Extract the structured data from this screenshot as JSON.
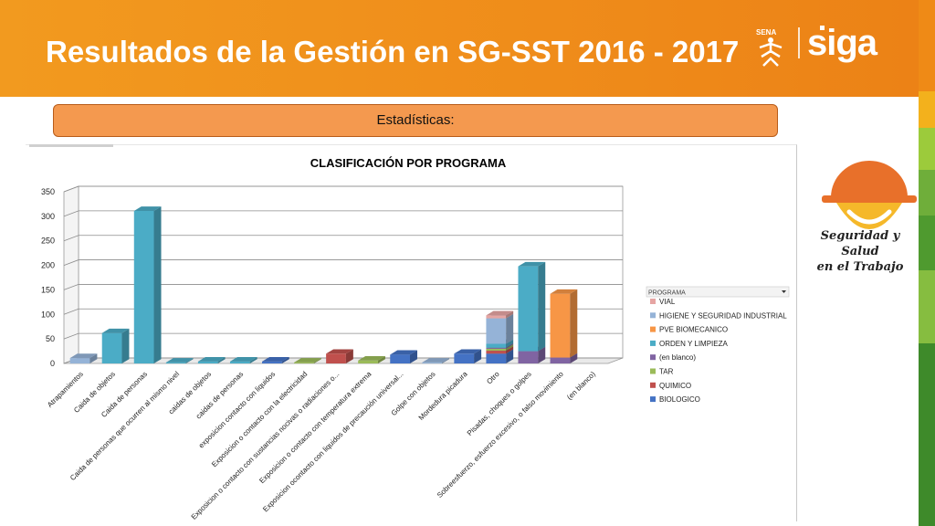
{
  "header": {
    "title": "Resultados de la Gestión en SG-SST 2016 - 2017",
    "sena_logo_text": "SENA",
    "siga_logo_text": "siga",
    "colors": {
      "bar": "#ef8c1a",
      "text": "#ffffff"
    }
  },
  "banner": {
    "label": "Estadísticas:"
  },
  "side_logo": {
    "line1": "Seguridad y Salud",
    "line2": "en el Trabajo"
  },
  "chart_data": {
    "type": "bar",
    "stacked": true,
    "title": "CLASIFICACIÓN POR PROGRAMA",
    "ylim": [
      0,
      350
    ],
    "yticks": [
      0,
      50,
      100,
      150,
      200,
      250,
      300,
      350
    ],
    "grid": true,
    "legend_position": "right",
    "legend_header": "PROGRAMA",
    "categories": [
      "Atrapamientos",
      "Caida de objetos",
      "Caida de personas",
      "Caida de personas  que ocurren al mismo nivel",
      "caidas de objetos",
      "caidas de personas",
      "exposicion contacto con liquidos",
      "Exposicion o contacto con la electricidad",
      "Exposicion o contacto con sustancias nocivas o radiaciones o...",
      "Exposicion o contacto con temperatura extrema",
      "Exposicion ocontacto con liquidos de precaución universal...",
      "Golpe con objetos",
      "Mordedura picadura",
      "Otro",
      "Pisadas, choques o golpes",
      "Sobreesfuerzo, esfuerzo excesivo, o falso movimiento",
      "(en blanco)"
    ],
    "series": [
      {
        "name": "BIOLOGICO",
        "color": "#4472c4",
        "values": [
          0,
          0,
          0,
          0,
          0,
          0,
          4,
          0,
          0,
          0,
          18,
          0,
          20,
          20,
          0,
          0,
          0
        ]
      },
      {
        "name": "QUIMICO",
        "color": "#c0504d",
        "values": [
          0,
          0,
          0,
          0,
          0,
          0,
          0,
          0,
          20,
          0,
          0,
          0,
          0,
          6,
          0,
          0,
          0
        ]
      },
      {
        "name": "TAR",
        "color": "#9bbb59",
        "values": [
          0,
          0,
          0,
          0,
          0,
          0,
          0,
          2,
          0,
          6,
          0,
          0,
          0,
          4,
          0,
          0,
          0
        ]
      },
      {
        "name": "(en blanco)",
        "color": "#8064a2",
        "values": [
          0,
          0,
          0,
          0,
          0,
          0,
          0,
          0,
          0,
          0,
          0,
          0,
          0,
          2,
          25,
          12,
          0
        ]
      },
      {
        "name": "ORDEN Y LIMPIEZA",
        "color": "#4bacc6",
        "values": [
          0,
          62,
          311,
          2,
          4,
          4,
          0,
          0,
          0,
          0,
          0,
          0,
          0,
          8,
          173,
          0,
          0
        ]
      },
      {
        "name": "PVE BIOMECANICO",
        "color": "#f79646",
        "values": [
          0,
          0,
          0,
          0,
          0,
          0,
          0,
          0,
          0,
          0,
          0,
          0,
          0,
          0,
          0,
          130,
          0
        ]
      },
      {
        "name": "HIGIENE Y SEGURIDAD INDUSTRIAL",
        "color": "#95b3d7",
        "values": [
          11,
          0,
          0,
          0,
          0,
          0,
          0,
          0,
          0,
          0,
          0,
          2,
          0,
          52,
          0,
          0,
          0
        ]
      },
      {
        "name": "VIAL",
        "color": "#e6a5a3",
        "values": [
          0,
          0,
          0,
          0,
          0,
          0,
          0,
          0,
          0,
          0,
          0,
          0,
          0,
          6,
          0,
          0,
          0
        ]
      }
    ],
    "legend_order": [
      "VIAL",
      "HIGIENE Y SEGURIDAD INDUSTRIAL",
      "PVE BIOMECANICO",
      "ORDEN Y LIMPIEZA",
      "(en blanco)",
      "TAR",
      "QUIMICO",
      "BIOLOGICO"
    ]
  }
}
